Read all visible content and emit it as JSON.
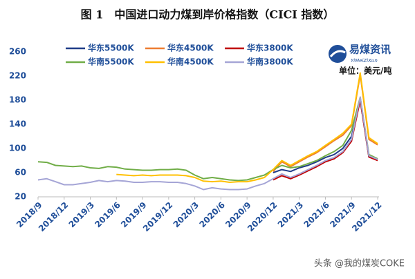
{
  "chart_data": {
    "type": "line",
    "title": "图 1　中国进口动力煤到岸价格指数（CICI 指数）",
    "annotations": [
      "易煤资讯",
      "YiMeiZiXun",
      "单位：美元/吨",
      "头条 @我的煤炭COKE"
    ],
    "categories": [
      "2018/9",
      null,
      null,
      "2018/12",
      null,
      null,
      "2019/3",
      null,
      null,
      "2019/6",
      null,
      null,
      "2019/9",
      null,
      null,
      "2019/12",
      null,
      null,
      "2020/3",
      null,
      null,
      "2020/6",
      null,
      null,
      "2020/9",
      null,
      null,
      "2020/12",
      null,
      null,
      "2021/3",
      null,
      null,
      "2021/6",
      null,
      null,
      "2021/9",
      null,
      null,
      "2021/12"
    ],
    "ylim": [
      20,
      260
    ],
    "yticks": [
      20,
      60,
      100,
      140,
      180,
      220,
      260
    ],
    "series": [
      {
        "name": "华东5500K",
        "color": "#1f3c88",
        "values": [
          null,
          null,
          null,
          null,
          null,
          null,
          null,
          null,
          null,
          null,
          null,
          null,
          null,
          null,
          null,
          null,
          null,
          null,
          null,
          null,
          null,
          null,
          null,
          null,
          null,
          null,
          null,
          60,
          65,
          62,
          68,
          72,
          78,
          85,
          90,
          100,
          120,
          180,
          86,
          82
        ]
      },
      {
        "name": "华东4500K",
        "color": "#ed7d31",
        "values": [
          null,
          null,
          null,
          null,
          null,
          null,
          null,
          null,
          null,
          null,
          null,
          null,
          null,
          null,
          null,
          null,
          null,
          null,
          null,
          null,
          null,
          null,
          null,
          null,
          null,
          null,
          null,
          62,
          78,
          70,
          78,
          86,
          93,
          103,
          113,
          122,
          138,
          222,
          115,
          106
        ]
      },
      {
        "name": "华东3800K",
        "color": "#c00000",
        "values": [
          null,
          null,
          null,
          null,
          null,
          null,
          null,
          null,
          null,
          null,
          null,
          null,
          null,
          null,
          null,
          null,
          null,
          null,
          null,
          null,
          null,
          null,
          null,
          null,
          null,
          null,
          null,
          48,
          55,
          50,
          56,
          63,
          70,
          78,
          83,
          93,
          112,
          180,
          86,
          80
        ]
      },
      {
        "name": "华南5500K",
        "color": "#70ad47",
        "values": [
          78,
          77,
          72,
          71,
          70,
          71,
          68,
          67,
          70,
          69,
          66,
          65,
          64,
          64,
          65,
          65,
          66,
          64,
          56,
          50,
          52,
          50,
          48,
          47,
          48,
          52,
          56,
          65,
          72,
          68,
          70,
          75,
          80,
          88,
          95,
          105,
          130,
          185,
          90,
          83
        ]
      },
      {
        "name": "华南4500K",
        "color": "#ffc000",
        "values": [
          null,
          null,
          null,
          null,
          null,
          null,
          null,
          null,
          null,
          57,
          56,
          55,
          56,
          55,
          56,
          56,
          56,
          55,
          52,
          46,
          45,
          46,
          44,
          45,
          45,
          48,
          52,
          65,
          80,
          72,
          80,
          88,
          95,
          105,
          115,
          125,
          140,
          225,
          118,
          108
        ]
      },
      {
        "name": "华南3800K",
        "color": "#a5a5d6",
        "values": [
          48,
          50,
          45,
          40,
          40,
          42,
          44,
          47,
          45,
          47,
          46,
          44,
          44,
          45,
          45,
          44,
          44,
          42,
          38,
          32,
          35,
          33,
          32,
          32,
          33,
          38,
          42,
          50,
          58,
          52,
          58,
          65,
          72,
          80,
          85,
          95,
          115,
          185,
          88,
          82
        ]
      }
    ]
  }
}
